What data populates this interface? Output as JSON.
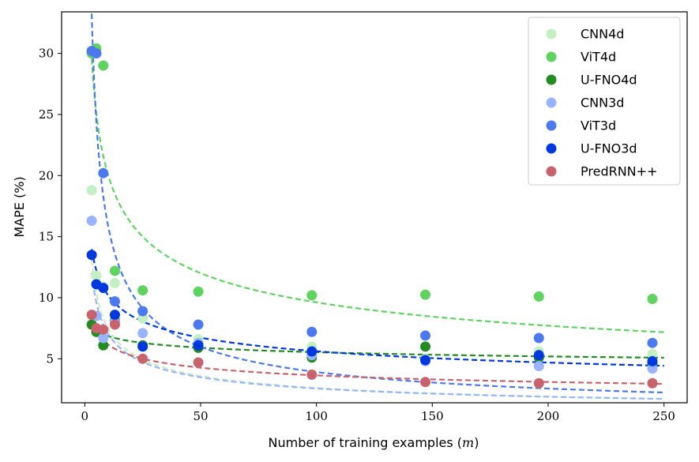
{
  "chart_data": {
    "type": "scatter",
    "title": "",
    "xlabel": "Number of training examples (m)",
    "xlabel_prefix": "Number of training examples (",
    "xlabel_var": "m",
    "xlabel_suffix": ")",
    "ylabel": "MAPE (%)",
    "xlim": [
      -10,
      260
    ],
    "ylim": [
      1.4,
      33.4
    ],
    "xticks": [
      0,
      50,
      100,
      150,
      200,
      250
    ],
    "yticks": [
      5,
      10,
      15,
      20,
      25,
      30
    ],
    "grid": false,
    "legend_position": "top-right",
    "series": [
      {
        "name": "CNN4d",
        "color": "#c2f0c2",
        "x": [
          3,
          5,
          8,
          13,
          25,
          49,
          98,
          147,
          196,
          245
        ],
        "y": [
          18.8,
          11.8,
          10.9,
          11.2,
          8.3,
          6.6,
          6.0,
          5.0,
          5.6,
          5.4
        ],
        "fit": {
          "a": 21.7,
          "p": 0.46
        }
      },
      {
        "name": "ViT4d",
        "color": "#5fd35f",
        "x": [
          3,
          5,
          8,
          13,
          25,
          49,
          98,
          147,
          196,
          245
        ],
        "y": [
          30.0,
          30.4,
          29.0,
          12.2,
          10.6,
          10.5,
          10.2,
          10.25,
          10.1,
          9.9
        ],
        "fit": {
          "a": 42.0,
          "p": 0.32
        }
      },
      {
        "name": "U-FNO4d",
        "color": "#228b22",
        "x": [
          3,
          5,
          8,
          13,
          25,
          49,
          98,
          147,
          196,
          245
        ],
        "y": [
          7.8,
          7.2,
          6.1,
          8.1,
          6.1,
          5.9,
          5.1,
          6.0,
          5.1,
          4.6
        ],
        "fit": {
          "a": 8.5,
          "p": 0.093
        }
      },
      {
        "name": "CNN3d",
        "color": "#99b3ff",
        "x": [
          3,
          5,
          8,
          13,
          25,
          49,
          98,
          147,
          196,
          245
        ],
        "y": [
          16.3,
          8.5,
          6.7,
          8.0,
          7.1,
          6.3,
          5.3,
          4.8,
          4.4,
          4.2
        ],
        "fit": {
          "a": 19.5,
          "p": 0.44
        }
      },
      {
        "name": "ViT3d",
        "color": "#4d79f0",
        "x": [
          3,
          5,
          8,
          13,
          25,
          49,
          98,
          147,
          196,
          245
        ],
        "y": [
          30.2,
          30.0,
          20.2,
          9.7,
          8.9,
          7.8,
          7.2,
          6.9,
          6.7,
          6.3
        ],
        "fit": {
          "a": 65.0,
          "p": 0.61
        }
      },
      {
        "name": "U-FNO3d",
        "color": "#0038e0",
        "x": [
          3,
          5,
          8,
          13,
          25,
          49,
          98,
          147,
          196,
          245
        ],
        "y": [
          13.5,
          11.1,
          10.8,
          8.6,
          6.0,
          6.1,
          5.6,
          4.9,
          5.3,
          4.8
        ],
        "fit": {
          "a": 18.6,
          "p": 0.26
        }
      },
      {
        "name": "PredRNN++",
        "color": "#c8636e",
        "x": [
          3,
          5,
          8,
          13,
          25,
          49,
          98,
          147,
          196,
          245
        ],
        "y": [
          8.6,
          7.5,
          7.4,
          7.8,
          5.0,
          4.7,
          3.7,
          3.1,
          3.0,
          3.0
        ],
        "fit": {
          "a": 10.5,
          "p": 0.23
        }
      }
    ]
  }
}
